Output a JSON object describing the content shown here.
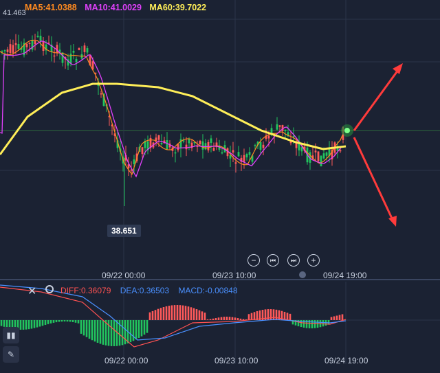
{
  "legend": {
    "ma5": "MA5:41.0388",
    "ma10": "MA10:41.0029",
    "ma60": "MA60:39.7022",
    "colors": {
      "ma5": "#ff8a1f",
      "ma10": "#e040fb",
      "ma60": "#ffee58"
    }
  },
  "price_top_label": "41.463",
  "low_label": "38.651",
  "controls": {
    "zoom_out": "−",
    "prev": "⏮",
    "next": "⏭",
    "zoom_in": "+"
  },
  "time_axis_main": [
    "09/22 00:00",
    "09/23 10:00",
    "09/24 19:00"
  ],
  "time_axis_macd": [
    "09/22 00:00",
    "09/23 10:00",
    "09/24 19:00"
  ],
  "macd_legend": {
    "diff": "DIFF:0.36079",
    "dea": "DEA:0.36503",
    "macd": "MACD:-0.00848",
    "colors": {
      "diff": "#ff5252",
      "dea": "#4a90ff",
      "macd": "#4a90ff"
    }
  },
  "icons": {
    "close": "close-icon",
    "settings": "gear-icon",
    "indicator": "indicator-icon",
    "draw": "pen-icon"
  },
  "colors": {
    "up": "#ff5a5a",
    "down": "#22c55e",
    "background": "#1b2233",
    "grid": "#2b3448",
    "arrow": "#ff3b3b"
  }
}
